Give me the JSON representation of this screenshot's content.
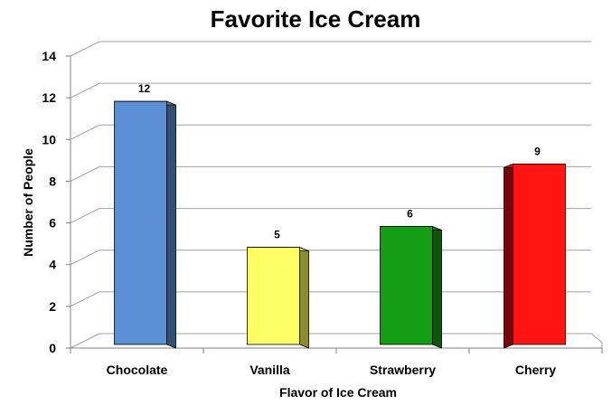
{
  "chart_data": {
    "type": "bar",
    "title": "Favorite Ice Cream",
    "xlabel": "Flavor of Ice Cream",
    "ylabel": "Number of People",
    "categories": [
      "Chocolate",
      "Vanilla",
      "Strawberry",
      "Cherry"
    ],
    "values": [
      12,
      5,
      6,
      9
    ],
    "data_labels": [
      "12",
      "5",
      "6",
      "9"
    ],
    "ylim": [
      0,
      14
    ],
    "yticks": [
      0,
      2,
      4,
      6,
      8,
      10,
      12,
      14
    ],
    "ytick_labels": [
      "0",
      "2",
      "4",
      "6",
      "8",
      "10",
      "12",
      "14"
    ],
    "grid": true,
    "legend": "none",
    "style": "3d-column",
    "colors": [
      "#5B8FD6",
      "#FFFF66",
      "#139E13",
      "#FF1414"
    ]
  }
}
